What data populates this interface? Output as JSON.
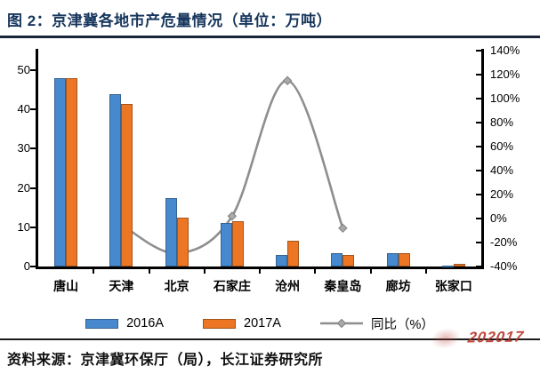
{
  "header": {
    "title": "图 2：京津冀各地市产危量情况（单位：万吨）"
  },
  "chart_data": {
    "type": "bar",
    "subtype": "grouped-bars-with-line",
    "title": "京津冀各地市产危量情况",
    "unit": "万吨",
    "categories": [
      "唐山",
      "天津",
      "北京",
      "石家庄",
      "沧州",
      "秦皇岛",
      "廊坊",
      "张家口"
    ],
    "series": [
      {
        "name": "2016A",
        "type": "bar",
        "axis": "left",
        "color": "#4789CE",
        "values": [
          48,
          44,
          17.5,
          11,
          3,
          3.5,
          3.5,
          0.3
        ]
      },
      {
        "name": "2017A",
        "type": "bar",
        "axis": "left",
        "color": "#EC7623",
        "values": [
          48,
          41.5,
          12.5,
          11.5,
          6.5,
          3,
          3.5,
          0.6
        ]
      },
      {
        "name": "同比（%）",
        "type": "line",
        "axis": "right",
        "color": "#8E8E8E",
        "marker": "diamond",
        "values": [
          null,
          -5,
          -29,
          2,
          115,
          -8,
          null,
          null
        ]
      }
    ],
    "left_axis": {
      "ticks": [
        0,
        10,
        20,
        30,
        40,
        50
      ],
      "min": 0,
      "max": 50
    },
    "right_axis": {
      "ticks": [
        "140%",
        "120%",
        "100%",
        "80%",
        "60%",
        "40%",
        "20%",
        "0%",
        "-20%",
        "-40%"
      ],
      "min": -40,
      "max": 140
    },
    "grid": false,
    "legend_position": "bottom"
  },
  "footer": {
    "source": "资料来源：京津冀环保厅（局），长江证券研究所"
  },
  "watermark": {
    "text": "202017",
    "color": "#B8352A"
  },
  "colors": {
    "title": "#17365D",
    "axis": "#000000",
    "bar_2016": "#4789CE",
    "bar_2017": "#EC7623",
    "trend_line": "#8E8E8E"
  }
}
